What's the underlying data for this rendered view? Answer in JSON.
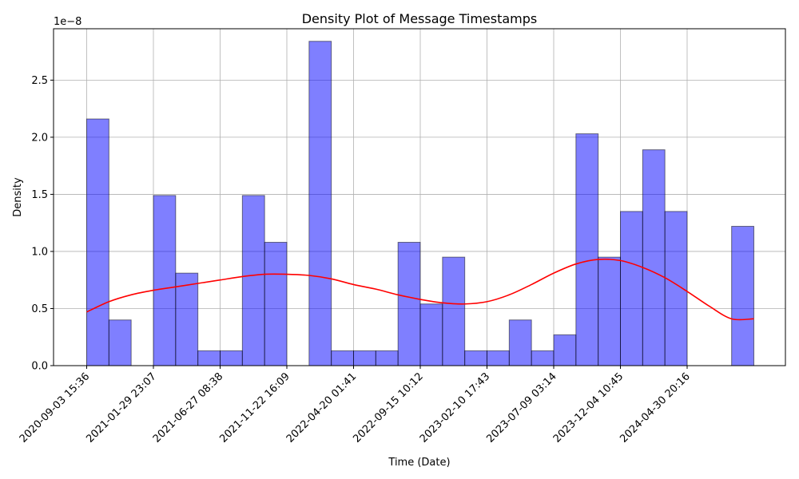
{
  "chart_data": {
    "type": "bar",
    "title": "Density Plot of Message Timestamps",
    "xlabel": "Time (Date)",
    "ylabel": "Density",
    "y_offset_label": "1e−8",
    "ylim": [
      0,
      2.95
    ],
    "y_ticks": [
      0.0,
      0.5,
      1.0,
      1.5,
      2.0,
      2.5
    ],
    "y_tick_labels": [
      "0.0",
      "0.5",
      "1.0",
      "1.5",
      "2.0",
      "2.5"
    ],
    "x_tick_labels": [
      "2020-09-03 15:36",
      "2021-01-29 23:07",
      "2021-06-27 08:38",
      "2021-11-22 16:09",
      "2022-04-20 01:41",
      "2022-09-15 10:12",
      "2023-02-10 17:43",
      "2023-07-09 03:14",
      "2023-12-04 10:45",
      "2024-04-30 20:16"
    ],
    "grid": true,
    "histogram": {
      "color": "#0000ff",
      "opacity": 0.5,
      "edge_color": "#000000",
      "bins_per_tick": 3,
      "values": [
        2.16,
        0.4,
        0.0,
        1.49,
        0.81,
        0.13,
        0.13,
        1.49,
        1.08,
        0.0,
        2.84,
        0.13,
        0.13,
        0.13,
        1.08,
        0.54,
        0.95,
        0.13,
        0.13,
        0.4,
        0.13,
        0.27,
        2.03,
        0.95,
        1.35,
        1.89,
        1.35,
        0.0,
        0.0,
        1.22
      ]
    },
    "kde": {
      "color": "#ff0000",
      "x": [
        0,
        1,
        2,
        3,
        4,
        5,
        6,
        7,
        8,
        9,
        10,
        11,
        12,
        13,
        14,
        15,
        16,
        17,
        18,
        19,
        20,
        21,
        22,
        23,
        24,
        25,
        26,
        27,
        28,
        29,
        30
      ],
      "values": [
        0.47,
        0.56,
        0.62,
        0.66,
        0.69,
        0.72,
        0.75,
        0.78,
        0.8,
        0.8,
        0.79,
        0.76,
        0.71,
        0.67,
        0.62,
        0.58,
        0.55,
        0.54,
        0.56,
        0.62,
        0.71,
        0.81,
        0.89,
        0.93,
        0.92,
        0.86,
        0.77,
        0.65,
        0.52,
        0.41,
        0.41
      ]
    }
  }
}
